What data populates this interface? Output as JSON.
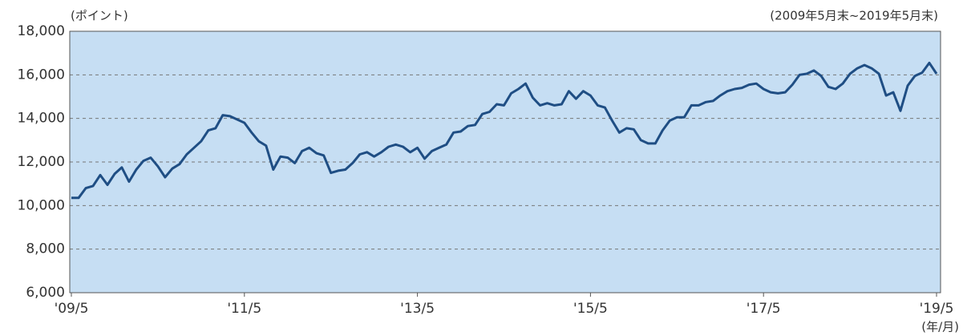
{
  "chart_data": {
    "type": "line",
    "subtitle": "(2009年5月末~2019年5月末)",
    "y_label": "(ポイント)",
    "x_label": "(年/月)",
    "color": "#1f4e84",
    "grid": true,
    "categories": [
      "'09/5",
      null,
      null,
      null,
      null,
      null,
      null,
      null,
      null,
      null,
      null,
      null,
      null,
      null,
      null,
      null,
      null,
      null,
      null,
      null,
      null,
      null,
      null,
      null,
      "'11/5",
      null,
      null,
      null,
      null,
      null,
      null,
      null,
      null,
      null,
      null,
      null,
      null,
      null,
      null,
      null,
      null,
      null,
      null,
      null,
      null,
      null,
      null,
      null,
      "'13/5",
      null,
      null,
      null,
      null,
      null,
      null,
      null,
      null,
      null,
      null,
      null,
      null,
      null,
      null,
      null,
      null,
      null,
      null,
      null,
      null,
      null,
      null,
      null,
      "'15/5",
      null,
      null,
      null,
      null,
      null,
      null,
      null,
      null,
      null,
      null,
      null,
      null,
      null,
      null,
      null,
      null,
      null,
      null,
      null,
      null,
      null,
      null,
      null,
      "'17/5",
      null,
      null,
      null,
      null,
      null,
      null,
      null,
      null,
      null,
      null,
      null,
      null,
      null,
      null,
      null,
      null,
      null,
      null,
      null,
      null,
      null,
      null,
      null,
      "'19/5"
    ],
    "values": [
      10350,
      10350,
      10800,
      10900,
      11400,
      10950,
      11450,
      11750,
      11100,
      11650,
      12050,
      12200,
      11800,
      11300,
      11700,
      11900,
      12350,
      12650,
      12950,
      13450,
      13550,
      14150,
      14100,
      13950,
      13800,
      13350,
      12950,
      12750,
      11650,
      12250,
      12200,
      11950,
      12500,
      12650,
      12400,
      12300,
      11500,
      11600,
      11650,
      11950,
      12350,
      12450,
      12250,
      12450,
      12700,
      12800,
      12700,
      12450,
      12650,
      12150,
      12500,
      12650,
      12800,
      13350,
      13400,
      13650,
      13700,
      14200,
      14300,
      14650,
      14600,
      15150,
      15350,
      15600,
      14950,
      14600,
      14700,
      14600,
      14650,
      15250,
      14900,
      15250,
      15050,
      14600,
      14500,
      13900,
      13350,
      13550,
      13500,
      13000,
      12850,
      12850,
      13450,
      13900,
      14050,
      14050,
      14600,
      14600,
      14750,
      14800,
      15050,
      15250,
      15350,
      15400,
      15550,
      15600,
      15350,
      15200,
      15150,
      15200,
      15550,
      16000,
      16050,
      16200,
      15950,
      15450,
      15350,
      15600,
      16050,
      16300,
      16450,
      16300,
      16050,
      15050,
      15200,
      14350,
      15500,
      15950,
      16100,
      16550,
      16050
    ],
    "ylim": [
      6000,
      18000
    ],
    "yticks": [
      {
        "value": 6000,
        "label": "6,000"
      },
      {
        "value": 8000,
        "label": "8,000"
      },
      {
        "value": 10000,
        "label": "10,000"
      },
      {
        "value": 12000,
        "label": "12,000"
      },
      {
        "value": 14000,
        "label": "14,000"
      },
      {
        "value": 16000,
        "label": "16,000"
      },
      {
        "value": 18000,
        "label": "18,000"
      }
    ]
  }
}
